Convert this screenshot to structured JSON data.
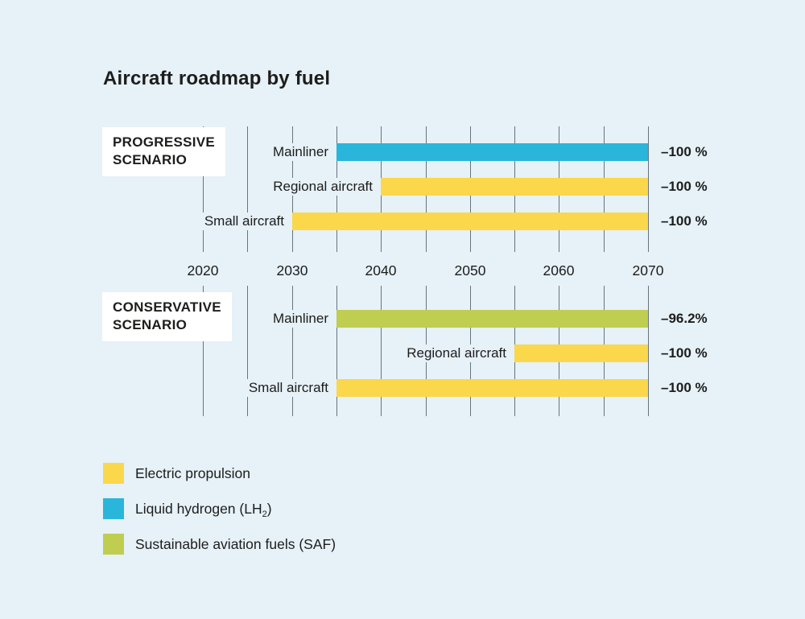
{
  "page": {
    "background": "#e6f1f8"
  },
  "chart_data": {
    "type": "bar",
    "variant": "horizontal-timeline-gantt",
    "title": "Aircraft roadmap by fuel",
    "x_axis": {
      "min": 2020,
      "max": 2070,
      "gridline_step_years": 5,
      "tick_labels": [
        "2020",
        "2030",
        "2040",
        "2050",
        "2060",
        "2070"
      ],
      "grid": "on"
    },
    "fuels": {
      "electric": {
        "label": "Electric propulsion",
        "label_sub": "",
        "label_post": "",
        "color": "#fbd74b"
      },
      "lh2": {
        "label": "Liquid hydrogen (LH",
        "label_sub": "2",
        "label_post": ")",
        "color": "#2ab5da"
      },
      "saf": {
        "label": "Sustainable aviation fuels (SAF)",
        "label_sub": "",
        "label_post": "",
        "color": "#bfce50"
      }
    },
    "legend_order": [
      "electric",
      "lh2",
      "saf"
    ],
    "legend_position": "bottom-left",
    "scenarios": [
      {
        "name_line1": "PROGRESSIVE",
        "name_line2": "SCENARIO",
        "rows": [
          {
            "label": "Mainliner",
            "fuel": "lh2",
            "start": 2035,
            "end": 2070,
            "value": "–100 %"
          },
          {
            "label": "Regional aircraft",
            "fuel": "electric",
            "start": 2040,
            "end": 2070,
            "value": "–100 %"
          },
          {
            "label": "Small aircraft",
            "fuel": "electric",
            "start": 2030,
            "end": 2070,
            "value": "–100 %"
          }
        ]
      },
      {
        "name_line1": "CONSERVATIVE",
        "name_line2": "SCENARIO",
        "rows": [
          {
            "label": "Mainliner",
            "fuel": "saf",
            "start": 2035,
            "end": 2070,
            "value": "–96.2%"
          },
          {
            "label": "Regional aircraft",
            "fuel": "electric",
            "start": 2055,
            "end": 2070,
            "value": "–100 %"
          },
          {
            "label": "Small aircraft",
            "fuel": "electric",
            "start": 2035,
            "end": 2070,
            "value": "–100 %"
          }
        ]
      }
    ],
    "colors": {
      "gridline": "#66757d",
      "text": "#1d1d1b",
      "background": "#e6f1f8",
      "scenario_box_background": "#ffffff"
    }
  }
}
